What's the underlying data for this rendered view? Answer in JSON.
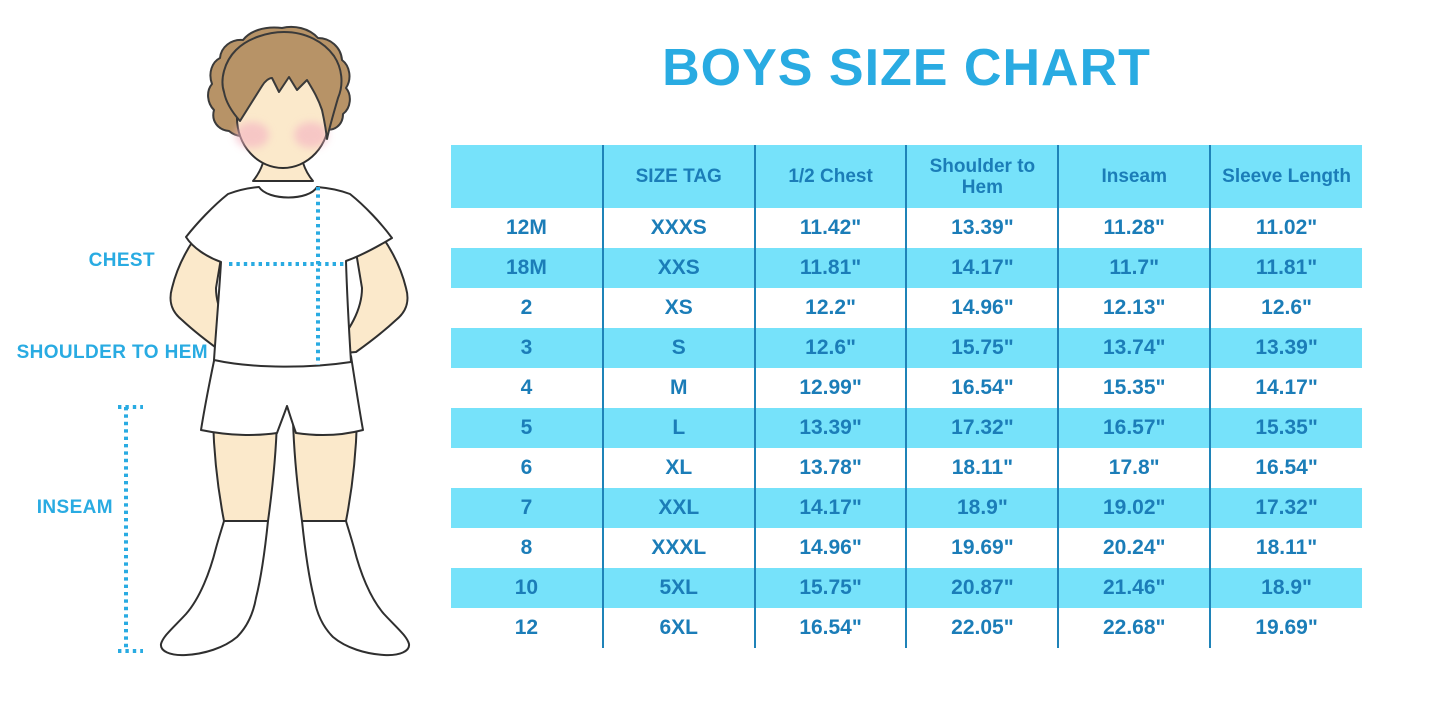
{
  "title": "BOYS SIZE CHART",
  "colors": {
    "accent_blue": "#29ABE2",
    "table_fill_cyan": "#76E2FA",
    "table_text_blue": "#1B7DB8",
    "divider_blue": "#1F83B8",
    "hair_brown": "#B79367",
    "skin": "#FBE9CB",
    "blush_pink": "#F4B5C3",
    "outline": "#2F2F2F"
  },
  "figure": {
    "labels": {
      "chest": "CHEST",
      "shoulder_to_hem": "SHOULDER TO HEM",
      "inseam": "INSEAM"
    }
  },
  "chart_data": {
    "type": "table",
    "title": "BOYS SIZE CHART",
    "columns": [
      "",
      "SIZE TAG",
      "1/2 Chest",
      "Shoulder to Hem",
      "Inseam",
      "Sleeve Length"
    ],
    "rows": [
      {
        "size": "12M",
        "values": [
          "XXXS",
          "11.42\"",
          "13.39\"",
          "11.28\"",
          "11.02\""
        ]
      },
      {
        "size": "18M",
        "values": [
          "XXS",
          "11.81\"",
          "14.17\"",
          "11.7\"",
          "11.81\""
        ]
      },
      {
        "size": "2",
        "values": [
          "XS",
          "12.2\"",
          "14.96\"",
          "12.13\"",
          "12.6\""
        ]
      },
      {
        "size": "3",
        "values": [
          "S",
          "12.6\"",
          "15.75\"",
          "13.74\"",
          "13.39\""
        ]
      },
      {
        "size": "4",
        "values": [
          "M",
          "12.99\"",
          "16.54\"",
          "15.35\"",
          "14.17\""
        ]
      },
      {
        "size": "5",
        "values": [
          "L",
          "13.39\"",
          "17.32\"",
          "16.57\"",
          "15.35\""
        ]
      },
      {
        "size": "6",
        "values": [
          "XL",
          "13.78\"",
          "18.11\"",
          "17.8\"",
          "16.54\""
        ]
      },
      {
        "size": "7",
        "values": [
          "XXL",
          "14.17\"",
          "18.9\"",
          "19.02\"",
          "17.32\""
        ]
      },
      {
        "size": "8",
        "values": [
          "XXXL",
          "14.96\"",
          "19.69\"",
          "20.24\"",
          "18.11\""
        ]
      },
      {
        "size": "10",
        "values": [
          "5XL",
          "15.75\"",
          "20.87\"",
          "21.46\"",
          "18.9\""
        ]
      },
      {
        "size": "12",
        "values": [
          "6XL",
          "16.54\"",
          "22.05\"",
          "22.68\"",
          "19.69\""
        ]
      }
    ]
  }
}
